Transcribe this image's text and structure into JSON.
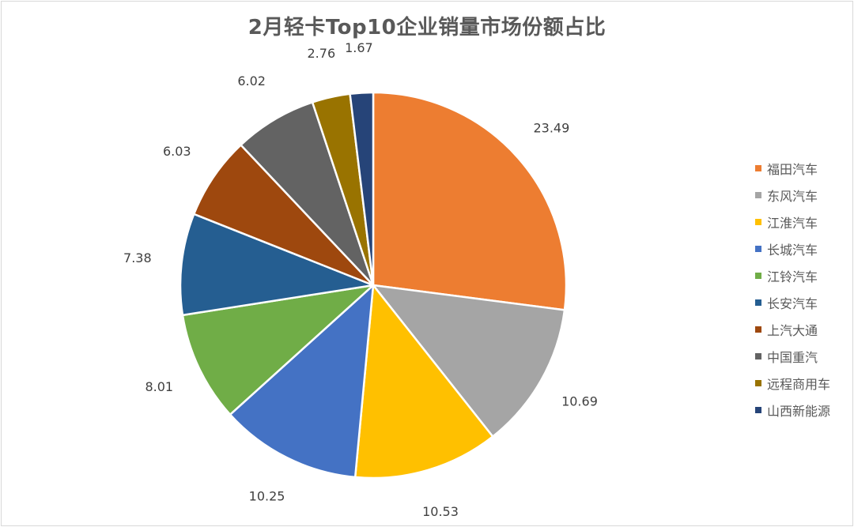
{
  "chart_data": {
    "type": "pie",
    "title": "2月轻卡Top10企业销量市场份额占比",
    "categories": [
      "福田汽车",
      "东风汽车",
      "江淮汽车",
      "长城汽车",
      "江铃汽车",
      "长安汽车",
      "上汽大通",
      "中国重汽",
      "远程商用车",
      "山西新能源"
    ],
    "values": [
      23.49,
      10.69,
      10.53,
      10.25,
      8.01,
      7.38,
      6.03,
      6.02,
      2.76,
      1.67
    ],
    "labels": [
      "23.49",
      "10.69",
      "10.53",
      "10.25",
      "8.01",
      "7.38",
      "6.03",
      "6.02",
      "2.76",
      "1.67"
    ],
    "colors": [
      "#ED7D31",
      "#A5A5A5",
      "#FFC000",
      "#4472C4",
      "#70AD47",
      "#255E91",
      "#9E480E",
      "#636363",
      "#997300",
      "#264478"
    ],
    "legend_position": "right"
  }
}
